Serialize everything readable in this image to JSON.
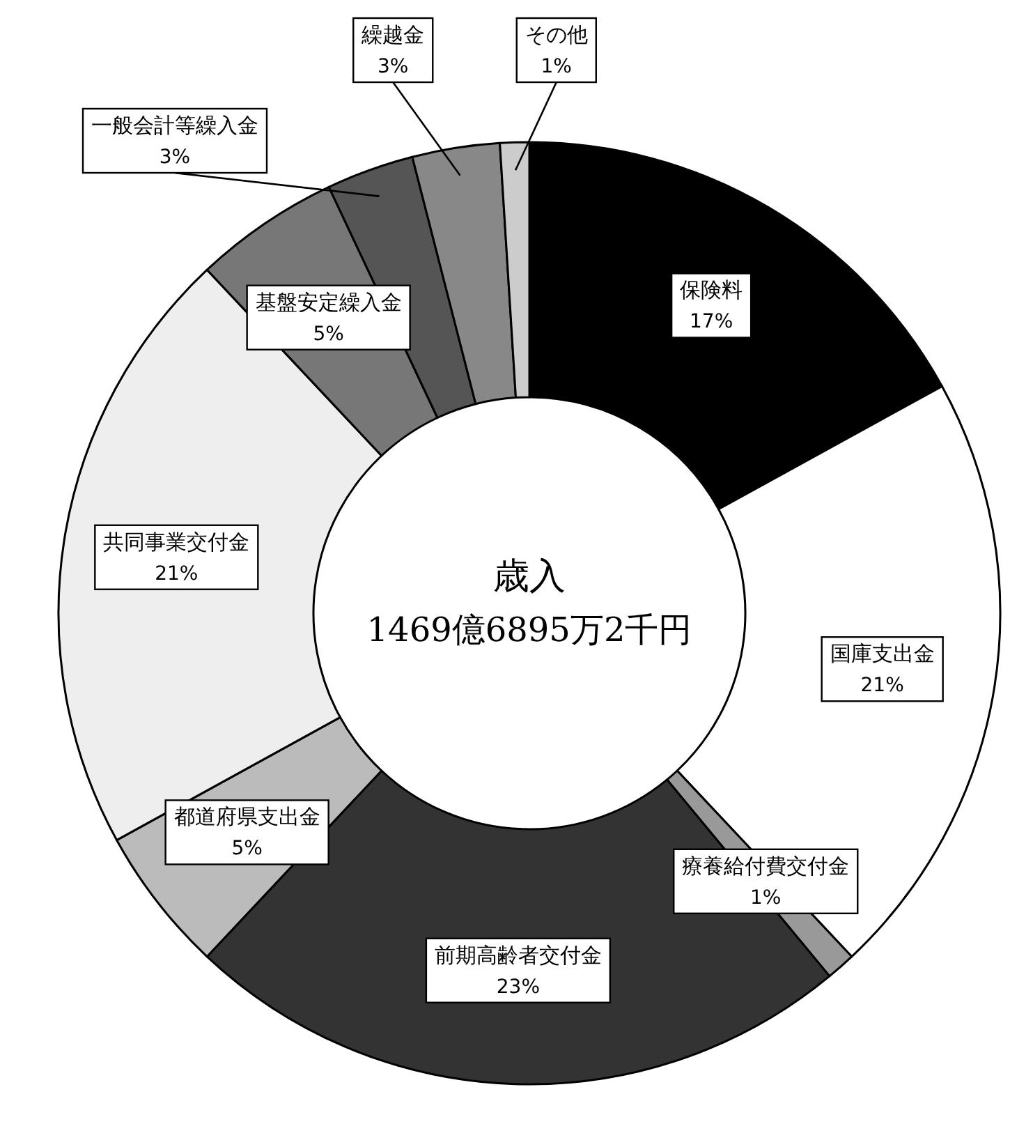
{
  "chart_data": {
    "type": "donut",
    "title": "歳入",
    "subtitle": "1469億6895万2千円",
    "categories": [
      "保険料",
      "国庫支出金",
      "療養給付費交付金",
      "前期高齢者交付金",
      "都道府県支出金",
      "共同事業交付金",
      "基盤安定繰入金",
      "一般会計等繰入金",
      "繰越金",
      "その他"
    ],
    "values": [
      17,
      21,
      1,
      23,
      5,
      21,
      5,
      3,
      3,
      1
    ],
    "colors": [
      "#000000",
      "#ffffff",
      "#999999",
      "#333333",
      "#bbbbbb",
      "#eeeeee",
      "#777777",
      "#555555",
      "#888888",
      "#cccccc"
    ],
    "value_labels": [
      "17%",
      "21%",
      "1%",
      "23%",
      "5%",
      "21%",
      "5%",
      "3%",
      "3%",
      "1%"
    ],
    "legend": false
  }
}
